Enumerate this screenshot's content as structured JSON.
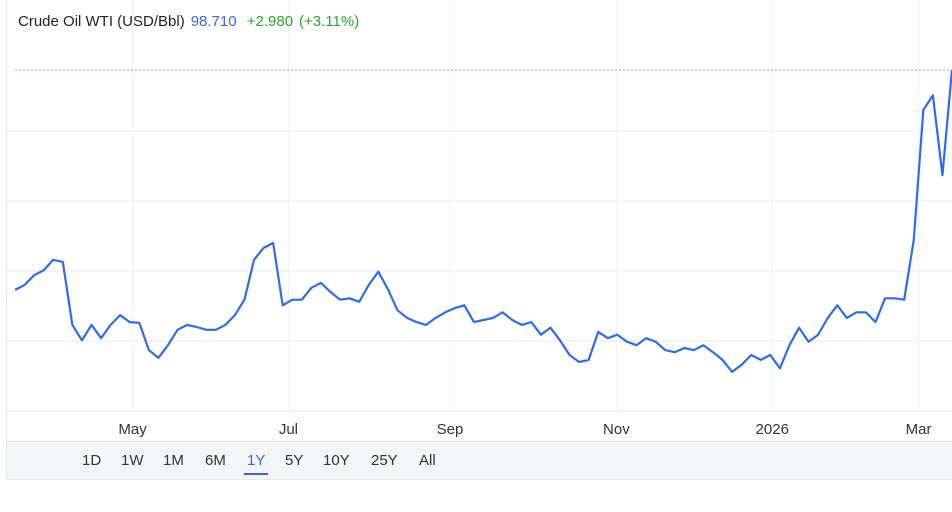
{
  "chart_data": {
    "type": "line",
    "title": "Crude Oil WTI (USD/Bbl)",
    "price": {
      "value": 98.71,
      "label": "98.710"
    },
    "change": {
      "value": 2.98,
      "label": "+2.980"
    },
    "change_pct": {
      "value": 3.11,
      "label": "(+3.11%)"
    },
    "color": "#2f6bef",
    "series": [
      {
        "color": "#2f6bef",
        "values": [
          67.3,
          68,
          69.4,
          70.1,
          71.6,
          71.3,
          62.3,
          60.1,
          62.3,
          60.4,
          62.3,
          63.7,
          62.7,
          62.6,
          58.7,
          57.6,
          59.4,
          61.6,
          62.3,
          62,
          61.6,
          61.6,
          62.3,
          63.7,
          65.9,
          71.6,
          73.3,
          74,
          65.1,
          65.9,
          65.9,
          67.6,
          68.3,
          67,
          65.9,
          66.1,
          65.6,
          68,
          69.9,
          67.4,
          64.4,
          63.3,
          62.7,
          62.3,
          63.3,
          64.1,
          64.7,
          65.1,
          62.7,
          63,
          63.3,
          64.1,
          63,
          62.3,
          62.7,
          60.9,
          61.9,
          60.1,
          58,
          57,
          57.3,
          61.3,
          60.4,
          60.9,
          59.9,
          59.4,
          60.4,
          59.9,
          58.7,
          58.4,
          59,
          58.7,
          59.4,
          58.4,
          57.3,
          55.6,
          56.6,
          58,
          57.3,
          58,
          56.1,
          59.4,
          61.9,
          59.9,
          60.9,
          63.3,
          65.1,
          63.3,
          64.1,
          64.1,
          62.7,
          66.1,
          66.1,
          65.9,
          74.4,
          93,
          95.1,
          83.7,
          98.71
        ]
      }
    ],
    "xlim": [
      0,
      98
    ],
    "xticks": [
      {
        "value": 12.3,
        "label": "May"
      },
      {
        "value": 28.6,
        "label": "Jul"
      },
      {
        "value": 45.5,
        "label": "Sep"
      },
      {
        "value": 62.9,
        "label": "Nov"
      },
      {
        "value": 79.2,
        "label": "2026"
      },
      {
        "value": 94.5,
        "label": "Mar"
      }
    ],
    "ylim": [
      50,
      108
    ],
    "ygrid": [
      50,
      60,
      70,
      80,
      90
    ],
    "grid": true,
    "ranges": [
      "1D",
      "1W",
      "1M",
      "6M",
      "1Y",
      "5Y",
      "10Y",
      "25Y",
      "All"
    ],
    "selected_range": 4
  }
}
